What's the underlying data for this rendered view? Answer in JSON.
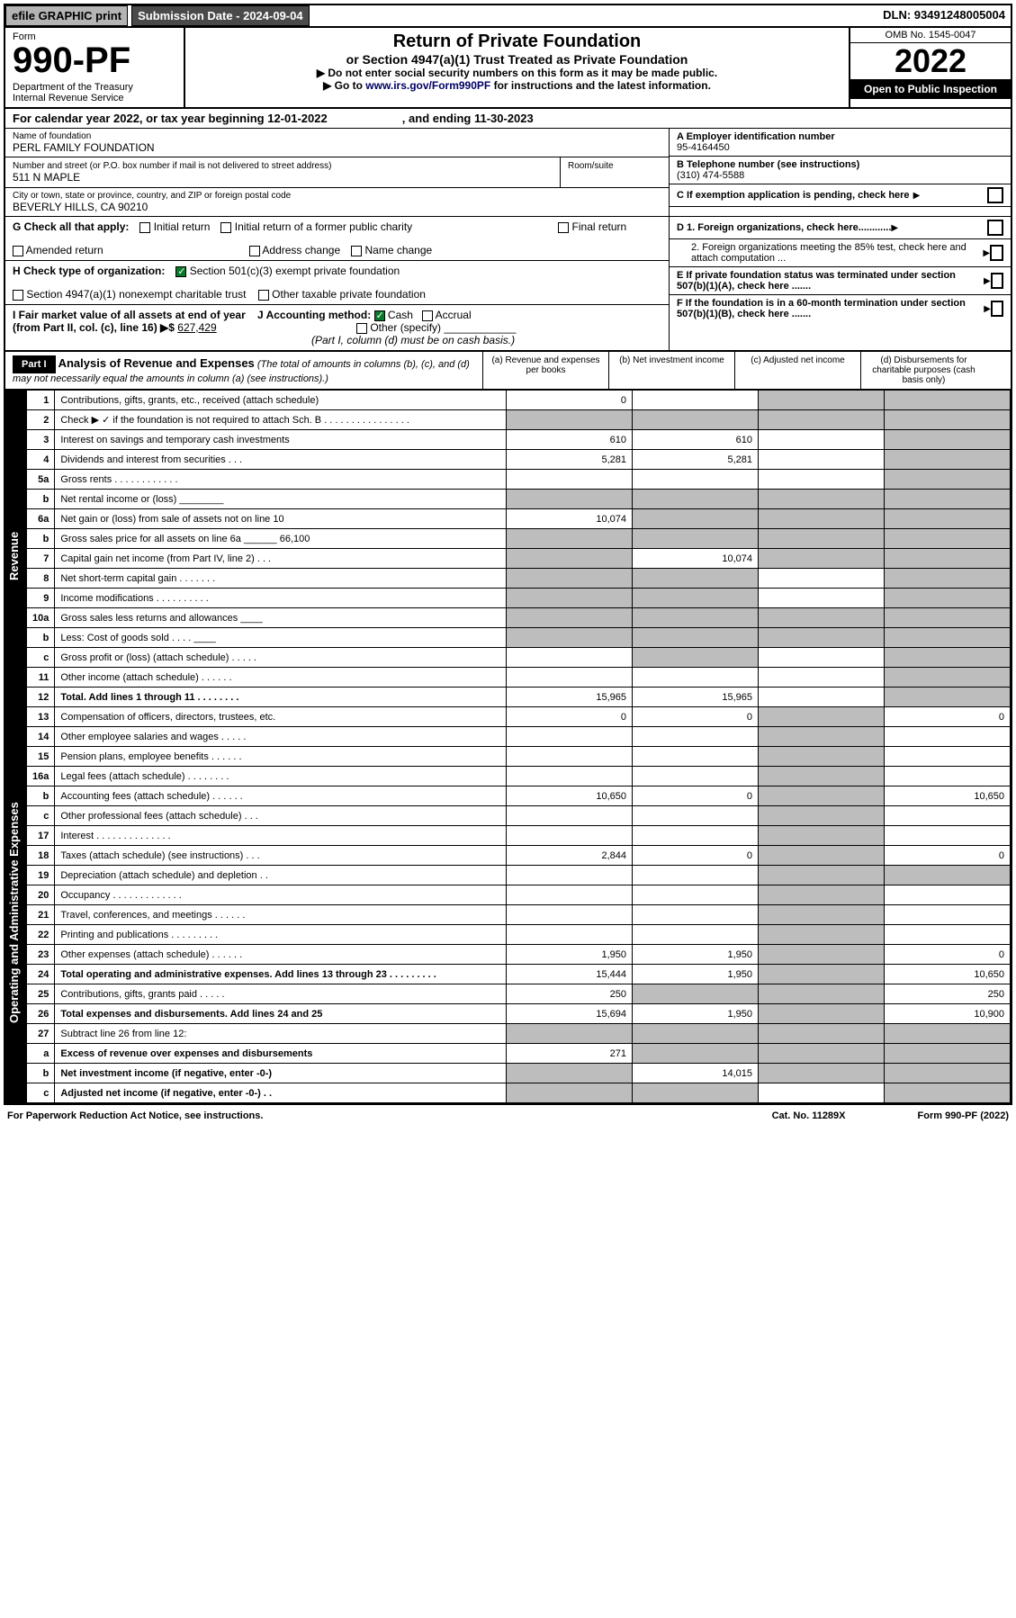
{
  "topbar": {
    "efile": "efile GRAPHIC print",
    "subdate": "Submission Date - 2024-09-04",
    "dln": "DLN: 93491248005004"
  },
  "header": {
    "form_label": "Form",
    "form_no": "990-PF",
    "dept": "Department of the Treasury\nInternal Revenue Service",
    "title": "Return of Private Foundation",
    "subtitle": "or Section 4947(a)(1) Trust Treated as Private Foundation",
    "instr1": "▶ Do not enter social security numbers on this form as it may be made public.",
    "instr2_pre": "▶ Go to ",
    "instr2_link": "www.irs.gov/Form990PF",
    "instr2_post": " for instructions and the latest information.",
    "omb": "OMB No. 1545-0047",
    "year": "2022",
    "open": "Open to Public Inspection"
  },
  "calrow": "For calendar year 2022, or tax year beginning 12-01-2022                       , and ending 11-30-2023",
  "info": {
    "name_lbl": "Name of foundation",
    "name": "PERL FAMILY FOUNDATION",
    "addr_lbl": "Number and street (or P.O. box number if mail is not delivered to street address)",
    "addr": "511 N MAPLE",
    "room_lbl": "Room/suite",
    "city_lbl": "City or town, state or province, country, and ZIP or foreign postal code",
    "city": "BEVERLY HILLS, CA  90210",
    "a_lbl": "A Employer identification number",
    "a_val": "95-4164450",
    "b_lbl": "B Telephone number (see instructions)",
    "b_val": "(310) 474-5588",
    "c_lbl": "C If exemption application is pending, check here",
    "d1": "D 1. Foreign organizations, check here............",
    "d2": "2. Foreign organizations meeting the 85% test, check here and attach computation ...",
    "e": "E  If private foundation status was terminated under section 507(b)(1)(A), check here .......",
    "f": "F  If the foundation is in a 60-month termination under section 507(b)(1)(B), check here .......",
    "g_lbl": "G Check all that apply:",
    "g_opts": [
      "Initial return",
      "Initial return of a former public charity",
      "Final return",
      "Amended return",
      "Address change",
      "Name change"
    ],
    "h_lbl": "H Check type of organization:",
    "h1": "Section 501(c)(3) exempt private foundation",
    "h2": "Section 4947(a)(1) nonexempt charitable trust",
    "h3": "Other taxable private foundation",
    "i_lbl": "I Fair market value of all assets at end of year (from Part II, col. (c), line 16) ▶$",
    "i_val": "627,429",
    "j_lbl": "J Accounting method:",
    "j1": "Cash",
    "j2": "Accrual",
    "j3": "Other (specify)",
    "j_note": "(Part I, column (d) must be on cash basis.)"
  },
  "part1": {
    "label": "Part I",
    "title": "Analysis of Revenue and Expenses",
    "note": "(The total of amounts in columns (b), (c), and (d) may not necessarily equal the amounts in column (a) (see instructions).)",
    "col_a": "(a)   Revenue and expenses per books",
    "col_b": "(b)   Net investment income",
    "col_c": "(c)   Adjusted net income",
    "col_d": "(d)   Disbursements for charitable purposes (cash basis only)"
  },
  "vlabels": {
    "rev": "Revenue",
    "exp": "Operating and Administrative Expenses"
  },
  "rows": [
    {
      "n": "1",
      "d": "Contributions, gifts, grants, etc., received (attach schedule)",
      "a": "0",
      "b": "",
      "c": "g",
      "dd": "g"
    },
    {
      "n": "2",
      "d": "Check ▶ ✓ if the foundation is not required to attach Sch. B   .  .  .  .  .  .  .  .  .  .  .  .  .  .  .  .",
      "a": "g",
      "b": "g",
      "c": "g",
      "dd": "g"
    },
    {
      "n": "3",
      "d": "Interest on savings and temporary cash investments",
      "a": "610",
      "b": "610",
      "c": "",
      "dd": "g"
    },
    {
      "n": "4",
      "d": "Dividends and interest from securities  .  .  .",
      "a": "5,281",
      "b": "5,281",
      "c": "",
      "dd": "g"
    },
    {
      "n": "5a",
      "d": "Gross rents   .  .  .  .  .  .  .  .  .  .  .  .",
      "a": "",
      "b": "",
      "c": "",
      "dd": "g"
    },
    {
      "n": "b",
      "d": "Net rental income or (loss)  ________",
      "a": "g",
      "b": "g",
      "c": "g",
      "dd": "g"
    },
    {
      "n": "6a",
      "d": "Net gain or (loss) from sale of assets not on line 10",
      "a": "10,074",
      "b": "g",
      "c": "g",
      "dd": "g"
    },
    {
      "n": "b",
      "d": "Gross sales price for all assets on line 6a ______ 66,100",
      "a": "g",
      "b": "g",
      "c": "g",
      "dd": "g"
    },
    {
      "n": "7",
      "d": "Capital gain net income (from Part IV, line 2)  .  .  .",
      "a": "g",
      "b": "10,074",
      "c": "g",
      "dd": "g"
    },
    {
      "n": "8",
      "d": "Net short-term capital gain  .  .  .  .  .  .  .",
      "a": "g",
      "b": "g",
      "c": "",
      "dd": "g"
    },
    {
      "n": "9",
      "d": "Income modifications .  .  .  .  .  .  .  .  .  .",
      "a": "g",
      "b": "g",
      "c": "",
      "dd": "g"
    },
    {
      "n": "10a",
      "d": "Gross sales less returns and allowances  ____",
      "a": "g",
      "b": "g",
      "c": "g",
      "dd": "g"
    },
    {
      "n": "b",
      "d": "Less: Cost of goods sold   .  .  .  .  ____",
      "a": "g",
      "b": "g",
      "c": "g",
      "dd": "g"
    },
    {
      "n": "c",
      "d": "Gross profit or (loss) (attach schedule)  .  .  .  .  .",
      "a": "",
      "b": "g",
      "c": "",
      "dd": "g"
    },
    {
      "n": "11",
      "d": "Other income (attach schedule)  .  .  .  .  .  .",
      "a": "",
      "b": "",
      "c": "",
      "dd": "g"
    },
    {
      "n": "12",
      "d": "Total. Add lines 1 through 11  .  .  .  .  .  .  .  .",
      "a": "15,965",
      "b": "15,965",
      "c": "",
      "dd": "g",
      "bold": true
    },
    {
      "n": "13",
      "d": "Compensation of officers, directors, trustees, etc.",
      "a": "0",
      "b": "0",
      "c": "g",
      "dd": "0"
    },
    {
      "n": "14",
      "d": "Other employee salaries and wages  .  .  .  .  .",
      "a": "",
      "b": "",
      "c": "g",
      "dd": ""
    },
    {
      "n": "15",
      "d": "Pension plans, employee benefits .  .  .  .  .  .",
      "a": "",
      "b": "",
      "c": "g",
      "dd": ""
    },
    {
      "n": "16a",
      "d": "Legal fees (attach schedule) .  .  .  .  .  .  .  .",
      "a": "",
      "b": "",
      "c": "g",
      "dd": ""
    },
    {
      "n": "b",
      "d": "Accounting fees (attach schedule)  .  .  .  .  .  .",
      "a": "10,650",
      "b": "0",
      "c": "g",
      "dd": "10,650"
    },
    {
      "n": "c",
      "d": "Other professional fees (attach schedule)  .  .  .",
      "a": "",
      "b": "",
      "c": "g",
      "dd": ""
    },
    {
      "n": "17",
      "d": "Interest .  .  .  .  .  .  .  .  .  .  .  .  .  .",
      "a": "",
      "b": "",
      "c": "g",
      "dd": ""
    },
    {
      "n": "18",
      "d": "Taxes (attach schedule) (see instructions)  .  .  .",
      "a": "2,844",
      "b": "0",
      "c": "g",
      "dd": "0"
    },
    {
      "n": "19",
      "d": "Depreciation (attach schedule) and depletion  .  .",
      "a": "",
      "b": "",
      "c": "g",
      "dd": "g"
    },
    {
      "n": "20",
      "d": "Occupancy .  .  .  .  .  .  .  .  .  .  .  .  .",
      "a": "",
      "b": "",
      "c": "g",
      "dd": ""
    },
    {
      "n": "21",
      "d": "Travel, conferences, and meetings .  .  .  .  .  .",
      "a": "",
      "b": "",
      "c": "g",
      "dd": ""
    },
    {
      "n": "22",
      "d": "Printing and publications .  .  .  .  .  .  .  .  .",
      "a": "",
      "b": "",
      "c": "g",
      "dd": ""
    },
    {
      "n": "23",
      "d": "Other expenses (attach schedule) .  .  .  .  .  .",
      "a": "1,950",
      "b": "1,950",
      "c": "g",
      "dd": "0"
    },
    {
      "n": "24",
      "d": "Total operating and administrative expenses. Add lines 13 through 23  .  .  .  .  .  .  .  .  .",
      "a": "15,444",
      "b": "1,950",
      "c": "g",
      "dd": "10,650",
      "bold": true
    },
    {
      "n": "25",
      "d": "Contributions, gifts, grants paid   .  .  .  .  .",
      "a": "250",
      "b": "g",
      "c": "g",
      "dd": "250"
    },
    {
      "n": "26",
      "d": "Total expenses and disbursements. Add lines 24 and 25",
      "a": "15,694",
      "b": "1,950",
      "c": "g",
      "dd": "10,900",
      "bold": true
    },
    {
      "n": "27",
      "d": "Subtract line 26 from line 12:",
      "a": "g",
      "b": "g",
      "c": "g",
      "dd": "g"
    },
    {
      "n": "a",
      "d": "Excess of revenue over expenses and disbursements",
      "a": "271",
      "b": "g",
      "c": "g",
      "dd": "g",
      "bold": true
    },
    {
      "n": "b",
      "d": "Net investment income (if negative, enter -0-)",
      "a": "g",
      "b": "14,015",
      "c": "g",
      "dd": "g",
      "bold": true
    },
    {
      "n": "c",
      "d": "Adjusted net income (if negative, enter -0-)  .  .",
      "a": "g",
      "b": "g",
      "c": "",
      "dd": "g",
      "bold": true
    }
  ],
  "footer": {
    "left": "For Paperwork Reduction Act Notice, see instructions.",
    "mid": "Cat. No. 11289X",
    "right": "Form 990-PF (2022)"
  }
}
